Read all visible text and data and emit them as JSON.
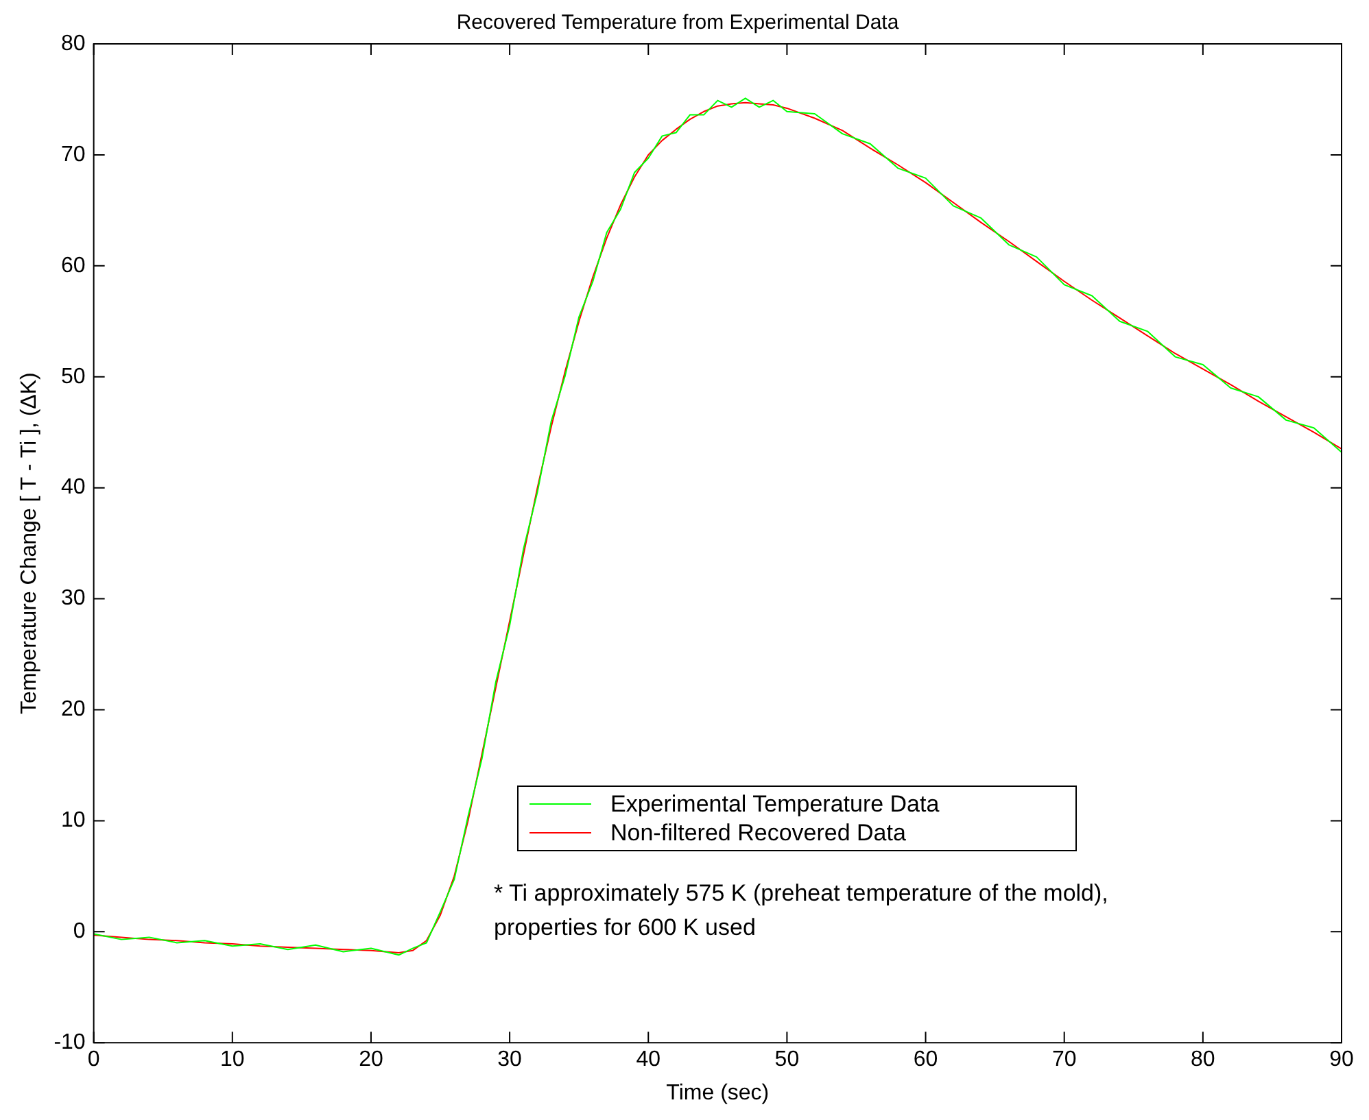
{
  "chart_data": {
    "type": "line",
    "title": "Recovered Temperature from Experimental Data",
    "xlabel": "Time (sec)",
    "ylabel": "Temperature Change [ T - Ti ], (ΔK)",
    "x": [
      0,
      2,
      4,
      6,
      8,
      10,
      12,
      14,
      16,
      18,
      20,
      22,
      23,
      24,
      25,
      26,
      27,
      28,
      29,
      30,
      31,
      32,
      33,
      34,
      35,
      36,
      37,
      38,
      39,
      40,
      41,
      42,
      43,
      44,
      45,
      46,
      47,
      48,
      49,
      50,
      52,
      54,
      56,
      58,
      60,
      62,
      64,
      66,
      68,
      70,
      72,
      74,
      76,
      78,
      80,
      82,
      84,
      86,
      88,
      90
    ],
    "series": [
      {
        "name": "Experimental Temperature Data",
        "color": "#00ff00",
        "values": [
          -0.2,
          -0.7,
          -0.5,
          -1.0,
          -0.8,
          -1.3,
          -1.1,
          -1.6,
          -1.2,
          -1.8,
          -1.5,
          -2.1,
          -1.5,
          -1.0,
          1.8,
          4.7,
          10.4,
          15.6,
          22.5,
          27.6,
          34.5,
          39.6,
          46.0,
          50.1,
          55.4,
          58.6,
          63.0,
          65.1,
          68.4,
          69.7,
          71.7,
          72.0,
          73.6,
          73.6,
          74.9,
          74.3,
          75.1,
          74.3,
          74.9,
          73.9,
          73.7,
          71.9,
          71.0,
          68.8,
          67.9,
          65.4,
          64.3,
          61.9,
          60.8,
          58.3,
          57.3,
          55.0,
          54.1,
          51.8,
          51.1,
          49.0,
          48.2,
          46.1,
          45.4,
          43.2
        ]
      },
      {
        "name": "Non-filtered Recovered Data",
        "color": "#ff0000",
        "values": [
          -0.3,
          -0.5,
          -0.7,
          -0.8,
          -1.0,
          -1.1,
          -1.3,
          -1.4,
          -1.5,
          -1.6,
          -1.7,
          -1.9,
          -1.7,
          -0.8,
          1.5,
          5,
          10,
          16,
          22,
          28,
          34,
          40,
          45.5,
          50.5,
          55,
          59,
          62.5,
          65.5,
          68,
          70,
          71.3,
          72.3,
          73.2,
          73.9,
          74.4,
          74.6,
          74.7,
          74.6,
          74.5,
          74.2,
          73.3,
          72.2,
          70.6,
          69.1,
          67.5,
          65.7,
          63.9,
          62.2,
          60.4,
          58.6,
          56.9,
          55.3,
          53.7,
          52.1,
          50.7,
          49.3,
          47.8,
          46.4,
          45.0,
          43.5
        ]
      }
    ],
    "xlim": [
      0,
      90
    ],
    "xticks": [
      0,
      10,
      20,
      30,
      40,
      50,
      60,
      70,
      80,
      90
    ],
    "ylim": [
      -10,
      80
    ],
    "yticks": [
      -10,
      0,
      10,
      20,
      30,
      40,
      50,
      60,
      70,
      80
    ],
    "grid": false,
    "legend": "bottom",
    "marker": "none",
    "line_style": "solid",
    "annotations": [
      "* Ti approximately 575 K (preheat temperature of the mold), properties for 600 K used"
    ]
  }
}
